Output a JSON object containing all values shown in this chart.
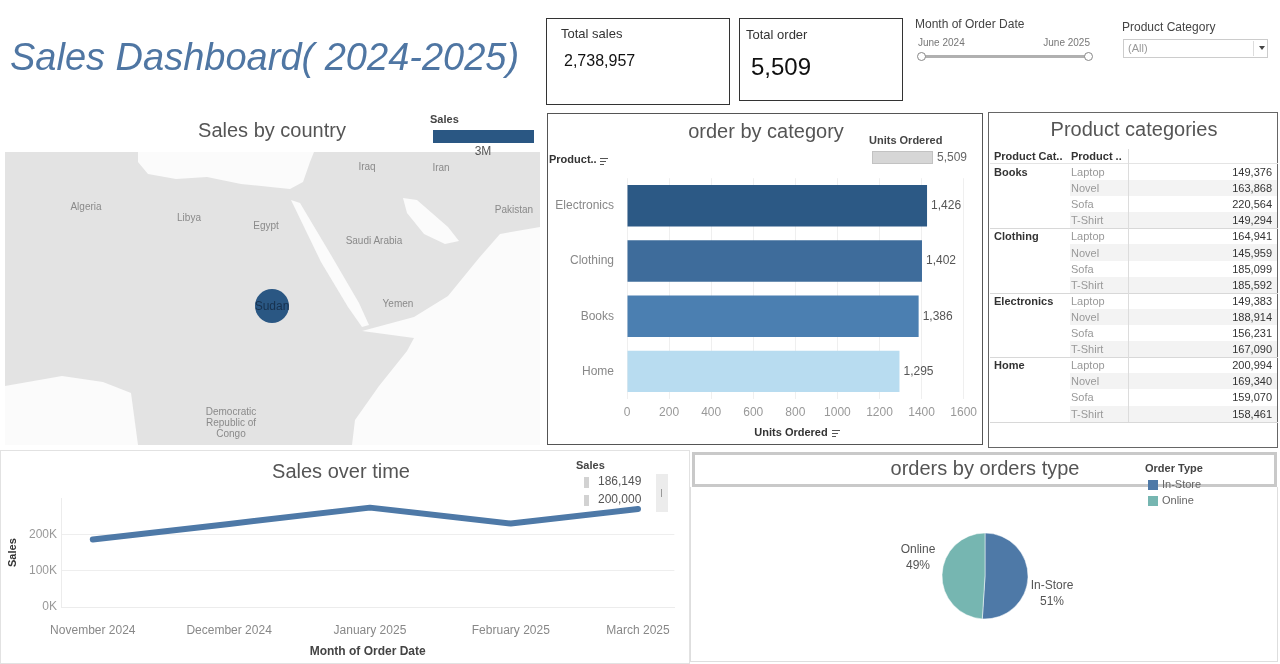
{
  "chart_data": [
    {
      "type": "other",
      "title": "Sales Dashboard( 2024-2025)"
    },
    {
      "type": "other",
      "title": "Total sales",
      "annotations": [
        "2,738,957"
      ]
    },
    {
      "type": "other",
      "title": "Total order",
      "annotations": [
        "5,509"
      ]
    },
    {
      "type": "other",
      "title": "Month of Order Date",
      "annotations": [
        "June 2024",
        "June 2025"
      ]
    },
    {
      "type": "other",
      "title": "Product Category",
      "annotations": [
        "(All)"
      ]
    },
    {
      "type": "other",
      "title": "Sales by country",
      "legend_title": "Sales",
      "annotations": [
        "Algeria",
        "Libya",
        "Egypt",
        "Iraq",
        "Iran",
        "Saudi Arabia",
        "Pakistan",
        "Yemen",
        "Democratic Republic of Congo",
        "Sudan",
        "3M"
      ]
    },
    {
      "type": "bar",
      "title": "order by category",
      "orientation": "horizontal",
      "categories": [
        "Electronics",
        "Clothing",
        "Books",
        "Home"
      ],
      "values": [
        1426,
        1402,
        1386,
        1295
      ],
      "colors": [
        "#2c5985",
        "#3e6c9b",
        "#4b7fb1",
        "#b8dcf0"
      ],
      "value_labels": [
        "1,426",
        "1,402",
        "1,386",
        "1,295"
      ],
      "xlim": [
        0,
        1600
      ],
      "xticks": [
        0,
        200,
        400,
        600,
        800,
        1000,
        1200,
        1400,
        1600
      ],
      "xlabel": "Units Ordered",
      "ylabel": "Product..",
      "legend_title": "Units Ordered",
      "annotations": [
        "5,509"
      ],
      "grid": "x"
    },
    {
      "type": "other",
      "title": "Product categories",
      "annotations": [
        "Product Cat..",
        "Product .."
      ],
      "categories": [
        "Laptop",
        "Novel",
        "Sofa",
        "T-Shirt"
      ],
      "series": [
        {
          "name": "Books",
          "values": [
            149376,
            163868,
            220564,
            149294
          ],
          "value_labels": [
            "149,376",
            "163,868",
            "220,564",
            "149,294"
          ]
        },
        {
          "name": "Clothing",
          "values": [
            164941,
            145959,
            185099,
            185592
          ],
          "value_labels": [
            "164,941",
            "145,959",
            "185,099",
            "185,592"
          ]
        },
        {
          "name": "Electronics",
          "values": [
            149383,
            188914,
            156231,
            167090
          ],
          "value_labels": [
            "149,383",
            "188,914",
            "156,231",
            "167,090"
          ]
        },
        {
          "name": "Home",
          "values": [
            200994,
            169340,
            159070,
            158461
          ],
          "value_labels": [
            "200,994",
            "169,340",
            "159,070",
            "158,461"
          ]
        }
      ]
    },
    {
      "type": "line",
      "title": "Sales over time",
      "x": [
        "2024-11",
        "2024-12",
        "2025-01",
        "2025-02",
        "2025-03"
      ],
      "series": [
        {
          "color": "#4e79a7",
          "values": [
            186000,
            229000,
            274000,
            230000,
            270000
          ]
        }
      ],
      "xlim": [
        "2024-10-25",
        "2025-03-09"
      ],
      "xticks": [
        {
          "value": "2024-11",
          "label": "November 2024"
        },
        {
          "value": "2024-12",
          "label": "December 2024"
        },
        {
          "value": "2025-01",
          "label": "January 2025"
        },
        {
          "value": "2025-02",
          "label": "February 2025"
        },
        {
          "value": "2025-03",
          "label": "March 2025"
        }
      ],
      "ylim": [
        0,
        300000
      ],
      "yticks": [
        {
          "value": 0,
          "label": "0K"
        },
        {
          "value": 100000,
          "label": "100K"
        },
        {
          "value": 200000,
          "label": "200K"
        }
      ],
      "xlabel": "Month of Order Date",
      "ylabel": "Sales",
      "legend_title": "Sales",
      "annotations": [
        "186,149",
        "200,000"
      ],
      "grid": "y"
    },
    {
      "type": "pie",
      "title": "orders by orders type",
      "categories": [
        "In-Store",
        "Online"
      ],
      "values": [
        51,
        49
      ],
      "colors": [
        "#4e79a7",
        "#76b6b1"
      ],
      "value_labels": [
        "51%",
        "49%"
      ],
      "legend": "top right",
      "legend_title": "Order Type"
    }
  ]
}
